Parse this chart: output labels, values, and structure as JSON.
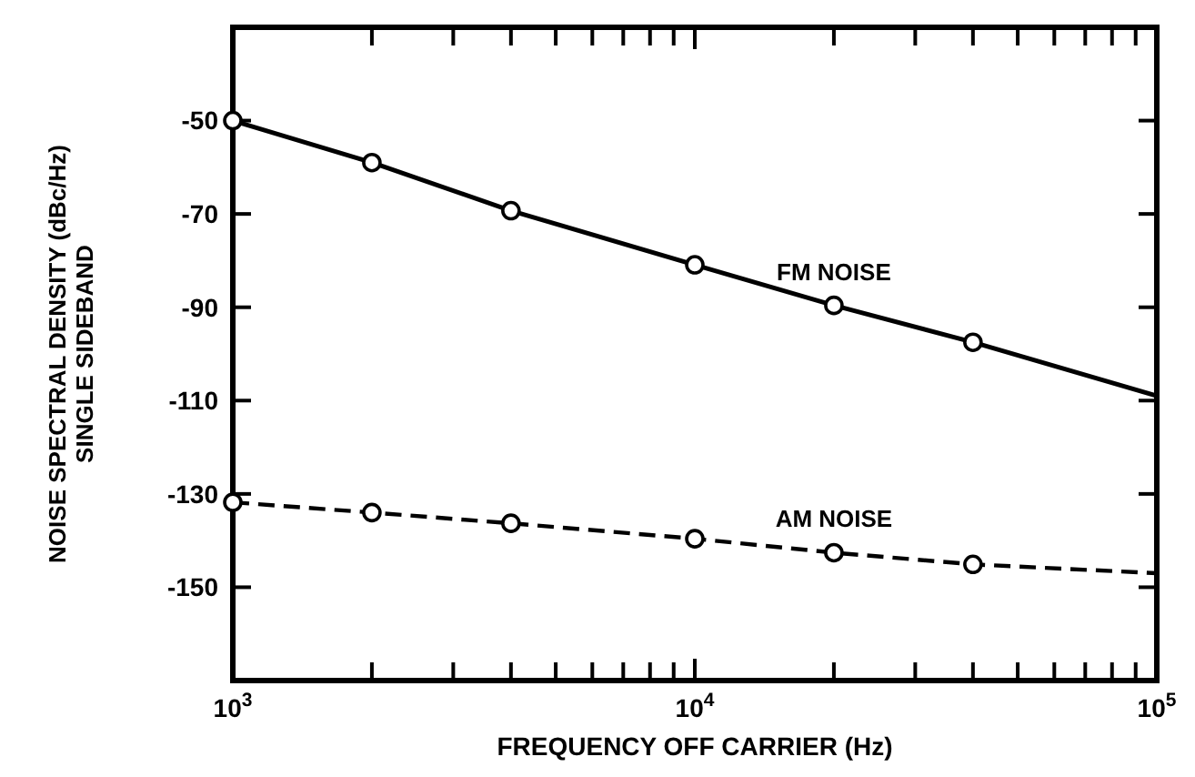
{
  "chart_data": {
    "type": "line",
    "xlabel": "FREQUENCY OFF CARRIER (Hz)",
    "ylabel": "NOISE SPECTRAL DENSITY (dBc/Hz)\nSINGLE SIDEBAND",
    "log": "x",
    "grid": false,
    "legend": false,
    "xlim": [
      1000,
      100000
    ],
    "ylim": [
      -170,
      -30
    ],
    "xticks": [
      {
        "value": 1000,
        "label": "10$^{3}$"
      },
      {
        "value": 2000,
        "label": null
      },
      {
        "value": 3000,
        "label": null
      },
      {
        "value": 4000,
        "label": null
      },
      {
        "value": 5000,
        "label": null
      },
      {
        "value": 6000,
        "label": null
      },
      {
        "value": 7000,
        "label": null
      },
      {
        "value": 8000,
        "label": null
      },
      {
        "value": 9000,
        "label": null
      },
      {
        "value": 10000,
        "label": "10$^{4}$"
      },
      {
        "value": 20000,
        "label": null
      },
      {
        "value": 30000,
        "label": null
      },
      {
        "value": 40000,
        "label": null
      },
      {
        "value": 50000,
        "label": null
      },
      {
        "value": 60000,
        "label": null
      },
      {
        "value": 70000,
        "label": null
      },
      {
        "value": 80000,
        "label": null
      },
      {
        "value": 90000,
        "label": null
      },
      {
        "value": 100000,
        "label": "10$^{5}$"
      }
    ],
    "yticks": [
      -50,
      -70,
      -90,
      -110,
      -130,
      -150
    ],
    "series": [
      {
        "name": "FM NOISE",
        "color": "#000000",
        "line_style": "solid",
        "marker": "none",
        "x": [
          1000,
          2000,
          4000,
          10000,
          20000,
          40000,
          100000
        ],
        "values": [
          -50,
          -59,
          -69.3,
          -80.9,
          -89.6,
          -97.5,
          -109
        ]
      },
      {
        "type": "scatter",
        "color": "#000000",
        "marker": "circle",
        "x": [
          1000,
          2000,
          4000,
          10000,
          20000,
          40000
        ],
        "values": [
          -50,
          -59,
          -69.3,
          -80.9,
          -89.6,
          -97.5
        ]
      },
      {
        "name": "AM NOISE",
        "color": "#000000",
        "line_style": "dashed",
        "marker": "none",
        "x": [
          1000,
          2000,
          4000,
          10000,
          20000,
          40000,
          100000
        ],
        "values": [
          -131.8,
          -134,
          -136.3,
          -139.6,
          -142.6,
          -145.1,
          -147
        ]
      },
      {
        "type": "scatter",
        "color": "#000000",
        "marker": "circle",
        "x": [
          1000,
          2000,
          4000,
          10000,
          20000,
          40000
        ],
        "values": [
          -131.8,
          -134,
          -136.3,
          -139.6,
          -142.6,
          -145.1
        ]
      }
    ]
  }
}
